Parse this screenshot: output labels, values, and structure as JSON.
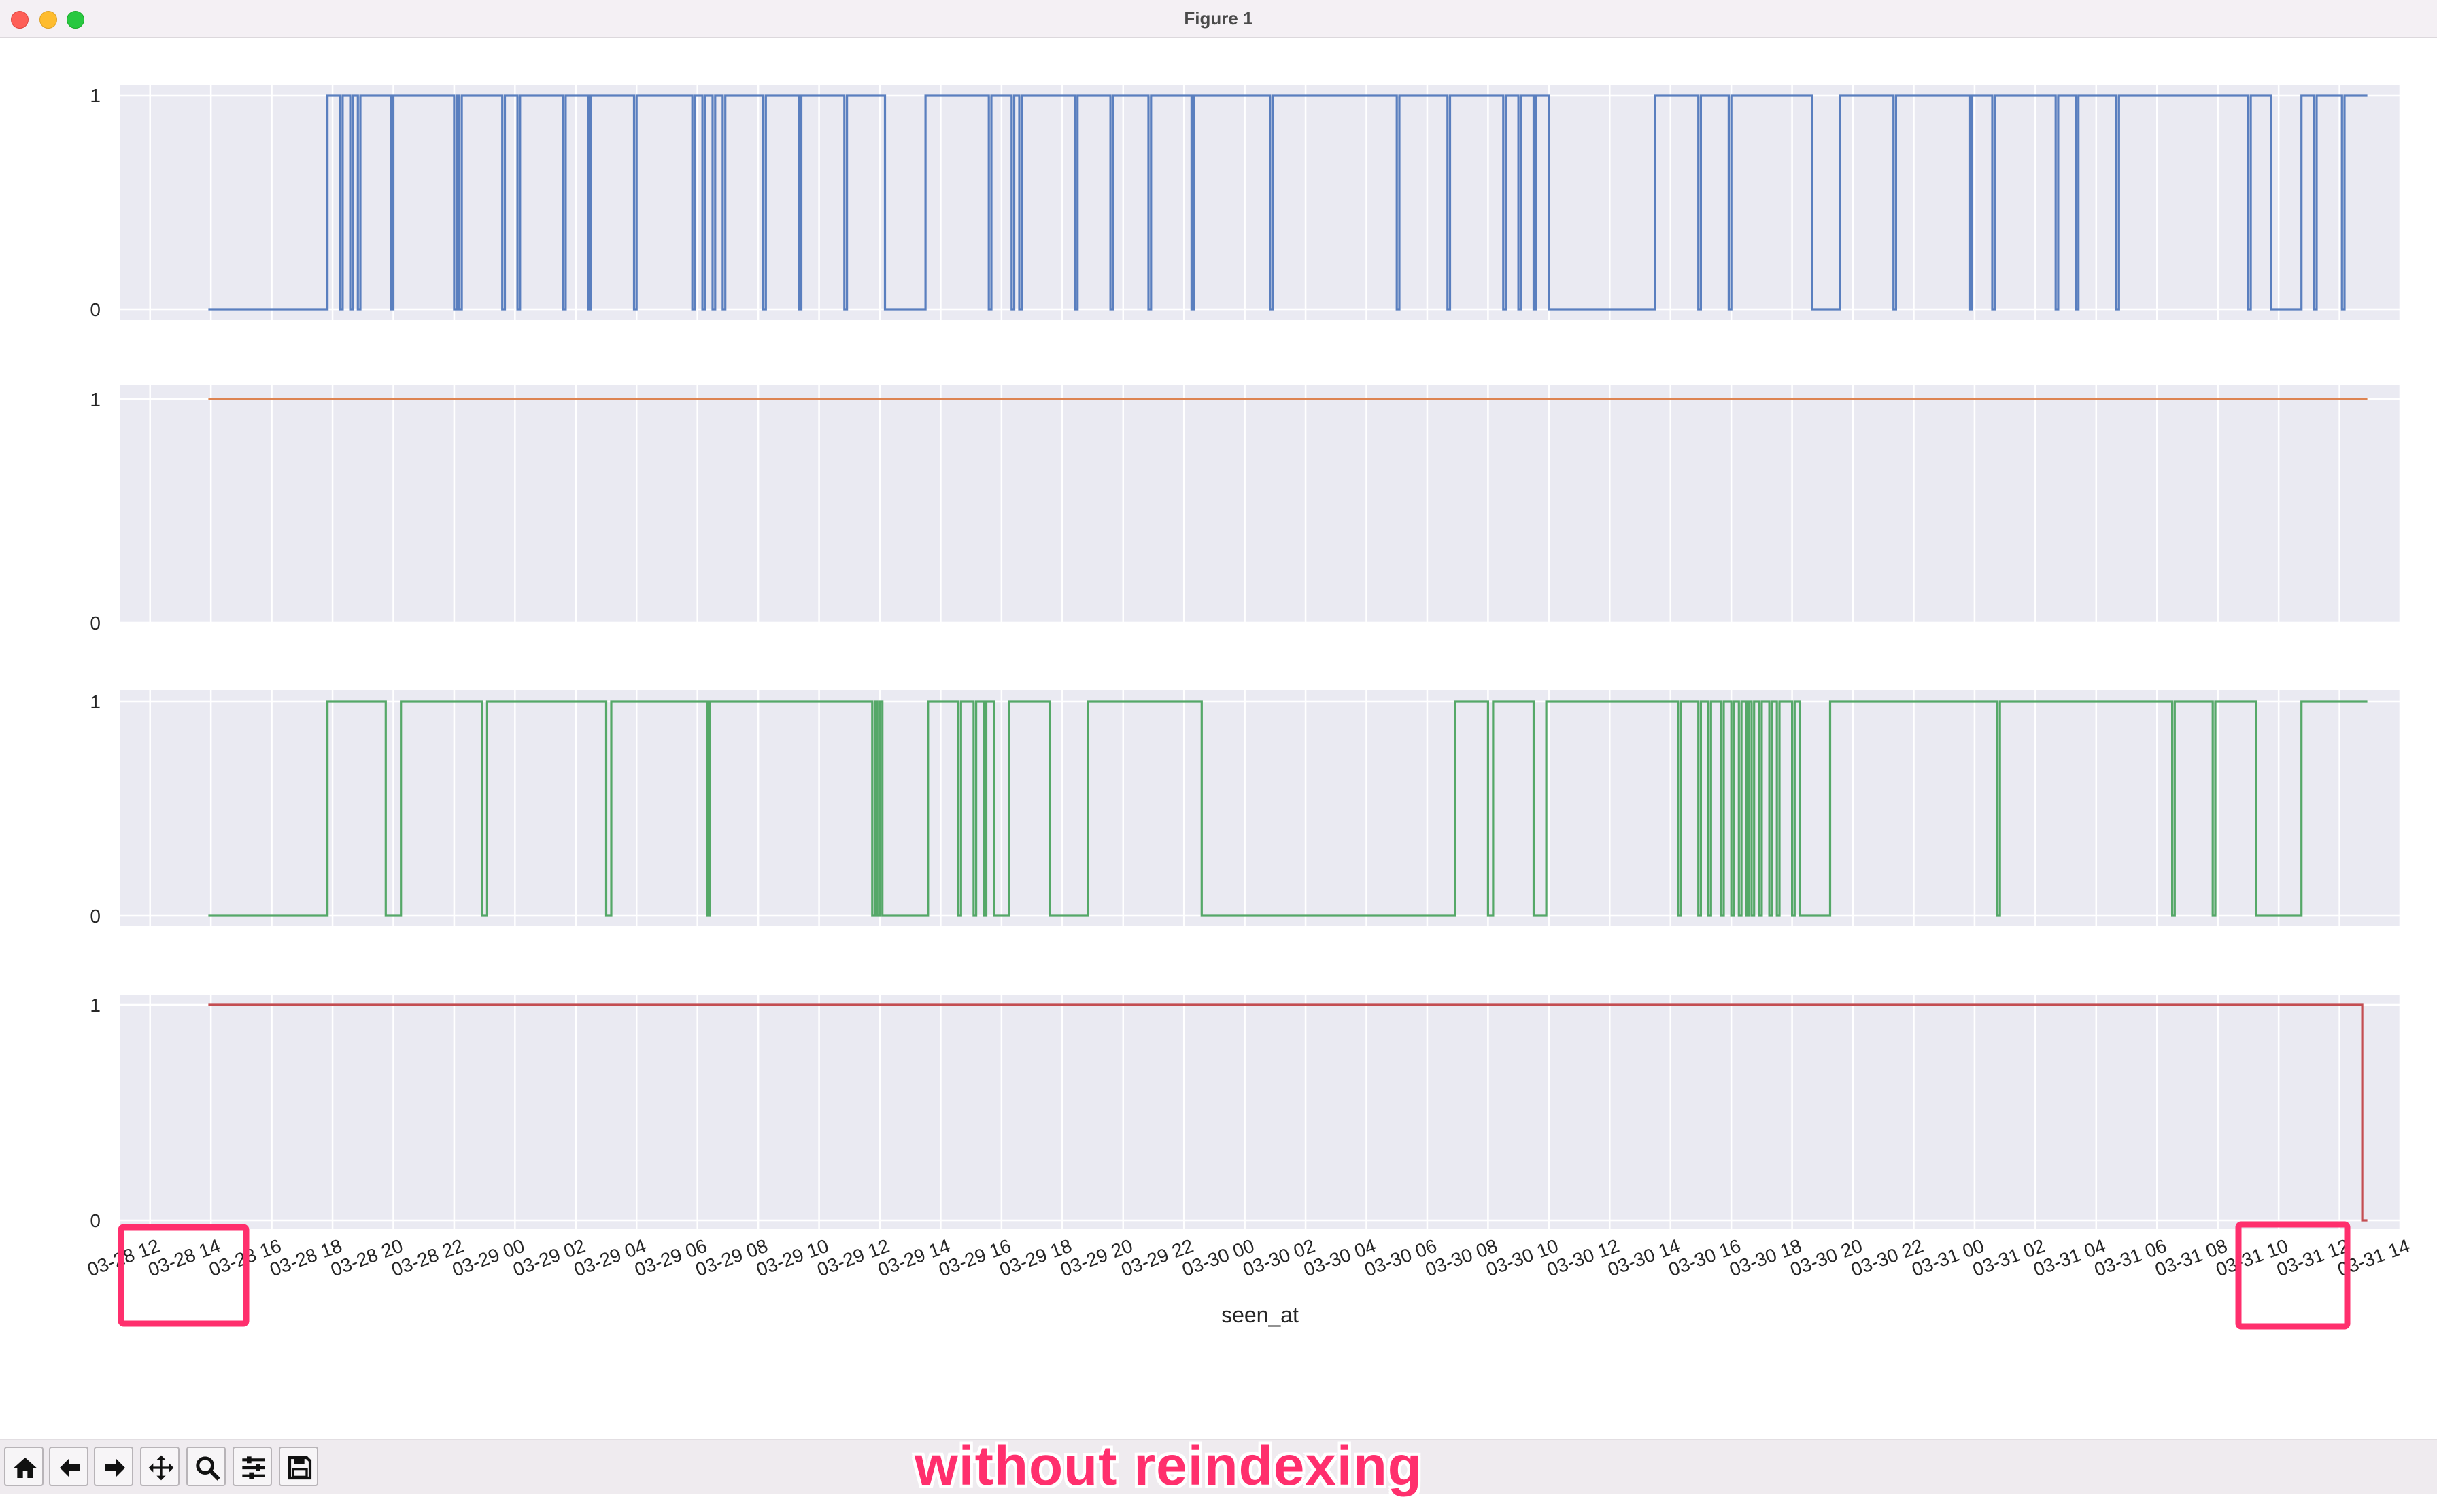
{
  "window": {
    "title": "Figure 1"
  },
  "annotation": {
    "text": "without reindexing",
    "color": "#ff2f6d"
  },
  "toolbar": {
    "buttons": [
      "home-icon",
      "back-arrow-icon",
      "forward-arrow-icon",
      "pan-icon",
      "zoom-icon",
      "configure-subplots-icon",
      "save-icon"
    ]
  },
  "chart_data": {
    "type": "line",
    "drawstyle": "step",
    "xlabel": "seen_at",
    "x_range": [
      "2024-03-28 11:00",
      "2024-03-31 14:00"
    ],
    "x_ticks": [
      "03-28 12",
      "03-28 14",
      "03-28 16",
      "03-28 18",
      "03-28 20",
      "03-28 22",
      "03-29 00",
      "03-29 02",
      "03-29 04",
      "03-29 06",
      "03-29 08",
      "03-29 10",
      "03-29 12",
      "03-29 14",
      "03-29 16",
      "03-29 18",
      "03-29 20",
      "03-29 22",
      "03-30 00",
      "03-30 02",
      "03-30 04",
      "03-30 06",
      "03-30 08",
      "03-30 10",
      "03-30 12",
      "03-30 14",
      "03-30 16",
      "03-30 18",
      "03-30 20",
      "03-30 22",
      "03-31 00",
      "03-31 02",
      "03-31 04",
      "03-31 06",
      "03-31 08",
      "03-31 10",
      "03-31 12",
      "03-31 14"
    ],
    "y_ticks": [
      "0",
      "1"
    ],
    "ylim": [
      0,
      1
    ],
    "grid": true,
    "highlight_boxes": [
      "03-28 12 to 03-28 14",
      "03-31 10 to 03-31 12"
    ],
    "highlight_color": "#ff2f6d",
    "panels": [
      {
        "color": "#5a7fbf",
        "x_start": "2024-03-28 13:55",
        "x_end": "2024-03-31 12:55",
        "steps": [
          [
            "2024-03-28 13:55",
            0
          ],
          [
            "2024-03-28 17:50",
            1
          ],
          [
            "2024-03-28 18:15",
            0
          ],
          [
            "2024-03-28 18:20",
            1
          ],
          [
            "2024-03-28 18:35",
            0
          ],
          [
            "2024-03-28 18:40",
            1
          ],
          [
            "2024-03-28 18:50",
            0
          ],
          [
            "2024-03-28 18:55",
            1
          ],
          [
            "2024-03-28 19:55",
            0
          ],
          [
            "2024-03-28 20:00",
            1
          ],
          [
            "2024-03-28 22:00",
            0
          ],
          [
            "2024-03-28 22:05",
            1
          ],
          [
            "2024-03-28 22:10",
            0
          ],
          [
            "2024-03-28 22:15",
            1
          ],
          [
            "2024-03-28 23:35",
            0
          ],
          [
            "2024-03-28 23:40",
            1
          ],
          [
            "2024-03-29 00:05",
            0
          ],
          [
            "2024-03-29 00:10",
            1
          ],
          [
            "2024-03-29 01:35",
            0
          ],
          [
            "2024-03-29 01:40",
            1
          ],
          [
            "2024-03-29 02:25",
            0
          ],
          [
            "2024-03-29 02:30",
            1
          ],
          [
            "2024-03-29 03:55",
            0
          ],
          [
            "2024-03-29 04:00",
            1
          ],
          [
            "2024-03-29 05:50",
            0
          ],
          [
            "2024-03-29 05:55",
            1
          ],
          [
            "2024-03-29 06:10",
            0
          ],
          [
            "2024-03-29 06:15",
            1
          ],
          [
            "2024-03-29 06:30",
            0
          ],
          [
            "2024-03-29 06:35",
            1
          ],
          [
            "2024-03-29 06:50",
            0
          ],
          [
            "2024-03-29 06:55",
            1
          ],
          [
            "2024-03-29 08:10",
            0
          ],
          [
            "2024-03-29 08:15",
            1
          ],
          [
            "2024-03-29 09:20",
            0
          ],
          [
            "2024-03-29 09:25",
            1
          ],
          [
            "2024-03-29 10:50",
            0
          ],
          [
            "2024-03-29 10:55",
            1
          ],
          [
            "2024-03-29 12:10",
            0
          ],
          [
            "2024-03-29 13:30",
            1
          ],
          [
            "2024-03-29 15:35",
            0
          ],
          [
            "2024-03-29 15:40",
            1
          ],
          [
            "2024-03-29 16:20",
            0
          ],
          [
            "2024-03-29 16:25",
            1
          ],
          [
            "2024-03-29 16:35",
            0
          ],
          [
            "2024-03-29 16:40",
            1
          ],
          [
            "2024-03-29 18:25",
            0
          ],
          [
            "2024-03-29 18:30",
            1
          ],
          [
            "2024-03-29 19:35",
            0
          ],
          [
            "2024-03-29 19:40",
            1
          ],
          [
            "2024-03-29 20:50",
            0
          ],
          [
            "2024-03-29 20:55",
            1
          ],
          [
            "2024-03-29 22:15",
            0
          ],
          [
            "2024-03-29 22:20",
            1
          ],
          [
            "2024-03-30 00:50",
            0
          ],
          [
            "2024-03-30 00:55",
            1
          ],
          [
            "2024-03-30 05:00",
            0
          ],
          [
            "2024-03-30 05:05",
            1
          ],
          [
            "2024-03-30 06:40",
            0
          ],
          [
            "2024-03-30 06:45",
            1
          ],
          [
            "2024-03-30 08:30",
            0
          ],
          [
            "2024-03-30 08:35",
            1
          ],
          [
            "2024-03-30 09:00",
            0
          ],
          [
            "2024-03-30 09:05",
            1
          ],
          [
            "2024-03-30 09:30",
            0
          ],
          [
            "2024-03-30 09:35",
            1
          ],
          [
            "2024-03-30 10:00",
            0
          ],
          [
            "2024-03-30 13:30",
            1
          ],
          [
            "2024-03-30 14:55",
            0
          ],
          [
            "2024-03-30 15:00",
            1
          ],
          [
            "2024-03-30 15:55",
            0
          ],
          [
            "2024-03-30 16:00",
            1
          ],
          [
            "2024-03-30 18:40",
            0
          ],
          [
            "2024-03-30 19:35",
            1
          ],
          [
            "2024-03-30 21:20",
            0
          ],
          [
            "2024-03-30 21:25",
            1
          ],
          [
            "2024-03-30 23:50",
            0
          ],
          [
            "2024-03-30 23:55",
            1
          ],
          [
            "2024-03-31 00:35",
            0
          ],
          [
            "2024-03-31 00:40",
            1
          ],
          [
            "2024-03-31 02:40",
            0
          ],
          [
            "2024-03-31 02:45",
            1
          ],
          [
            "2024-03-31 03:20",
            0
          ],
          [
            "2024-03-31 03:25",
            1
          ],
          [
            "2024-03-31 04:40",
            0
          ],
          [
            "2024-03-31 04:45",
            1
          ],
          [
            "2024-03-31 09:00",
            0
          ],
          [
            "2024-03-31 09:05",
            1
          ],
          [
            "2024-03-31 09:45",
            0
          ],
          [
            "2024-03-31 10:45",
            1
          ],
          [
            "2024-03-31 11:10",
            0
          ],
          [
            "2024-03-31 11:15",
            1
          ],
          [
            "2024-03-31 12:05",
            0
          ],
          [
            "2024-03-31 12:10",
            1
          ]
        ]
      },
      {
        "color": "#dd8452",
        "x_start": "2024-03-28 13:55",
        "x_end": "2024-03-31 12:55",
        "steps": [
          [
            "2024-03-28 13:55",
            1
          ]
        ]
      },
      {
        "color": "#55a868",
        "x_start": "2024-03-28 13:55",
        "x_end": "2024-03-31 12:55",
        "steps": [
          [
            "2024-03-28 13:55",
            0
          ],
          [
            "2024-03-28 17:50",
            1
          ],
          [
            "2024-03-28 19:45",
            0
          ],
          [
            "2024-03-28 20:15",
            1
          ],
          [
            "2024-03-28 22:55",
            0
          ],
          [
            "2024-03-28 23:05",
            1
          ],
          [
            "2024-03-29 03:00",
            0
          ],
          [
            "2024-03-29 03:10",
            1
          ],
          [
            "2024-03-29 06:20",
            0
          ],
          [
            "2024-03-29 06:25",
            1
          ],
          [
            "2024-03-29 11:45",
            0
          ],
          [
            "2024-03-29 11:50",
            1
          ],
          [
            "2024-03-29 11:55",
            0
          ],
          [
            "2024-03-29 12:00",
            1
          ],
          [
            "2024-03-29 12:05",
            0
          ],
          [
            "2024-03-29 13:35",
            1
          ],
          [
            "2024-03-29 14:35",
            0
          ],
          [
            "2024-03-29 14:40",
            1
          ],
          [
            "2024-03-29 15:05",
            0
          ],
          [
            "2024-03-29 15:10",
            1
          ],
          [
            "2024-03-29 15:25",
            0
          ],
          [
            "2024-03-29 15:30",
            1
          ],
          [
            "2024-03-29 15:45",
            0
          ],
          [
            "2024-03-29 16:15",
            1
          ],
          [
            "2024-03-29 17:35",
            0
          ],
          [
            "2024-03-29 18:50",
            1
          ],
          [
            "2024-03-29 22:35",
            0
          ],
          [
            "2024-03-30 06:55",
            1
          ],
          [
            "2024-03-30 08:00",
            0
          ],
          [
            "2024-03-30 08:10",
            1
          ],
          [
            "2024-03-30 09:30",
            0
          ],
          [
            "2024-03-30 09:55",
            1
          ],
          [
            "2024-03-30 14:15",
            0
          ],
          [
            "2024-03-30 14:20",
            1
          ],
          [
            "2024-03-30 14:55",
            0
          ],
          [
            "2024-03-30 15:00",
            1
          ],
          [
            "2024-03-30 15:15",
            0
          ],
          [
            "2024-03-30 15:20",
            1
          ],
          [
            "2024-03-30 15:40",
            0
          ],
          [
            "2024-03-30 15:45",
            1
          ],
          [
            "2024-03-30 16:00",
            0
          ],
          [
            "2024-03-30 16:05",
            1
          ],
          [
            "2024-03-30 16:15",
            0
          ],
          [
            "2024-03-30 16:20",
            1
          ],
          [
            "2024-03-30 16:30",
            0
          ],
          [
            "2024-03-30 16:35",
            1
          ],
          [
            "2024-03-30 16:40",
            0
          ],
          [
            "2024-03-30 16:45",
            1
          ],
          [
            "2024-03-30 16:55",
            0
          ],
          [
            "2024-03-30 17:00",
            1
          ],
          [
            "2024-03-30 17:15",
            0
          ],
          [
            "2024-03-30 17:20",
            1
          ],
          [
            "2024-03-30 17:30",
            0
          ],
          [
            "2024-03-30 17:35",
            1
          ],
          [
            "2024-03-30 18:00",
            0
          ],
          [
            "2024-03-30 18:05",
            1
          ],
          [
            "2024-03-30 18:15",
            0
          ],
          [
            "2024-03-30 19:15",
            1
          ],
          [
            "2024-03-31 00:45",
            0
          ],
          [
            "2024-03-31 00:50",
            1
          ],
          [
            "2024-03-31 06:30",
            0
          ],
          [
            "2024-03-31 06:35",
            1
          ],
          [
            "2024-03-31 07:50",
            0
          ],
          [
            "2024-03-31 07:55",
            1
          ],
          [
            "2024-03-31 09:15",
            0
          ],
          [
            "2024-03-31 10:45",
            1
          ]
        ]
      },
      {
        "color": "#c44e52",
        "x_start": "2024-03-28 13:55",
        "x_end": "2024-03-31 12:55",
        "steps": [
          [
            "2024-03-28 13:55",
            1
          ],
          [
            "2024-03-31 12:45",
            0
          ]
        ]
      }
    ]
  }
}
